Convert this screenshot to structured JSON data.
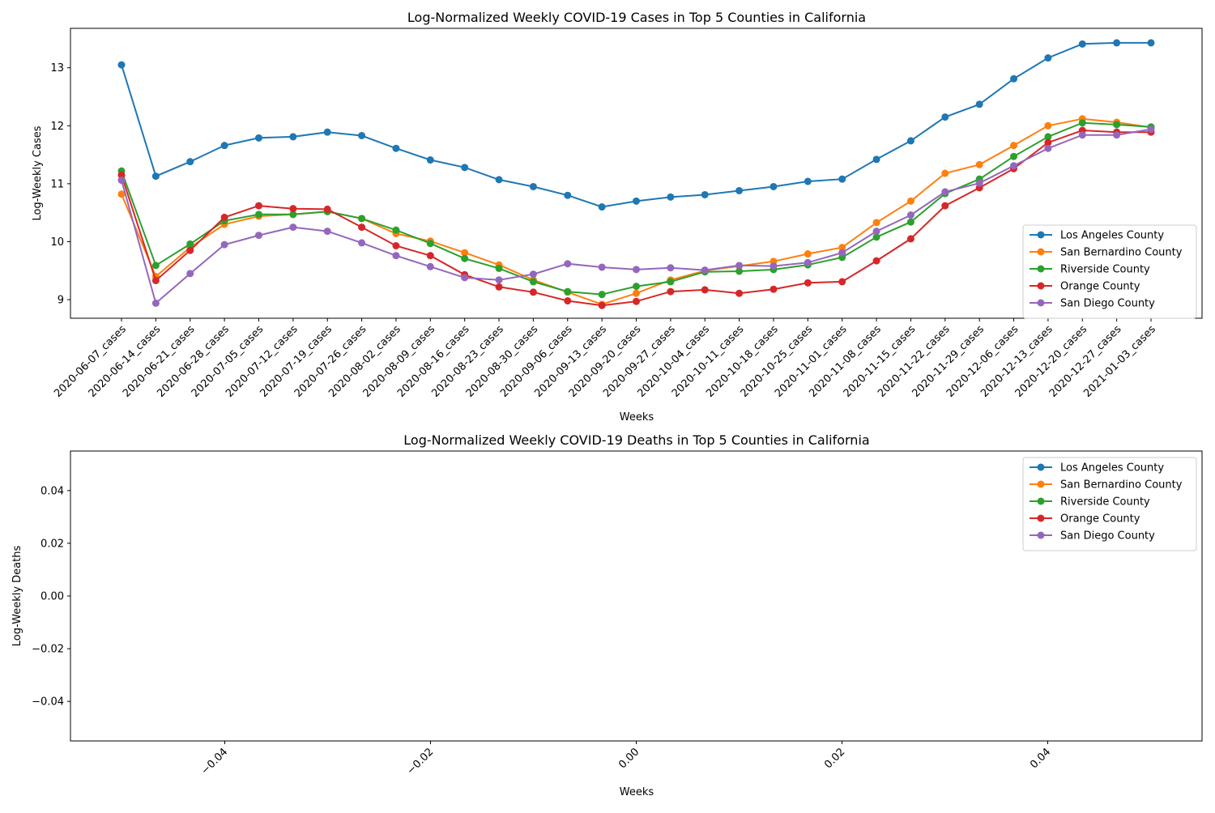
{
  "chart_data": [
    {
      "type": "line",
      "title": "Log-Normalized Weekly COVID-19 Cases in Top 5 Counties in California",
      "xlabel": "Weeks",
      "ylabel": "Log-Weekly Cases",
      "ylim": [
        8.68,
        13.68
      ],
      "yticks": [
        9,
        10,
        11,
        12,
        13
      ],
      "grid": false,
      "legend_position": "lower-right",
      "categories": [
        "2020-06-07_cases",
        "2020-06-14_cases",
        "2020-06-21_cases",
        "2020-06-28_cases",
        "2020-07-05_cases",
        "2020-07-12_cases",
        "2020-07-19_cases",
        "2020-07-26_cases",
        "2020-08-02_cases",
        "2020-08-09_cases",
        "2020-08-16_cases",
        "2020-08-23_cases",
        "2020-08-30_cases",
        "2020-09-06_cases",
        "2020-09-13_cases",
        "2020-09-20_cases",
        "2020-09-27_cases",
        "2020-10-04_cases",
        "2020-10-11_cases",
        "2020-10-18_cases",
        "2020-10-25_cases",
        "2020-11-01_cases",
        "2020-11-08_cases",
        "2020-11-15_cases",
        "2020-11-22_cases",
        "2020-11-29_cases",
        "2020-12-06_cases",
        "2020-12-13_cases",
        "2020-12-20_cases",
        "2020-12-27_cases",
        "2021-01-03_cases"
      ],
      "series": [
        {
          "name": "Los Angeles County",
          "color": "#1f77b4",
          "values": [
            13.05,
            11.13,
            11.38,
            11.66,
            11.79,
            11.81,
            11.89,
            11.83,
            11.61,
            11.41,
            11.28,
            11.07,
            10.95,
            10.8,
            10.6,
            10.7,
            10.77,
            10.81,
            10.88,
            10.95,
            11.04,
            11.08,
            11.42,
            11.74,
            12.15,
            12.37,
            12.81,
            13.17,
            13.41,
            13.43,
            13.43
          ]
        },
        {
          "name": "San Bernardino County",
          "color": "#ff7f0e",
          "values": [
            10.82,
            9.4,
            9.9,
            10.3,
            10.44,
            10.47,
            10.52,
            10.4,
            10.14,
            10.01,
            9.81,
            9.6,
            9.34,
            9.13,
            8.92,
            9.11,
            9.34,
            9.5,
            9.58,
            9.66,
            9.79,
            9.9,
            10.33,
            10.7,
            11.18,
            11.33,
            11.66,
            12.0,
            12.12,
            12.06,
            11.97
          ]
        },
        {
          "name": "Riverside County",
          "color": "#2ca02c",
          "values": [
            11.22,
            9.59,
            9.96,
            10.36,
            10.47,
            10.47,
            10.52,
            10.4,
            10.2,
            9.97,
            9.71,
            9.54,
            9.31,
            9.14,
            9.09,
            9.23,
            9.31,
            9.48,
            9.49,
            9.52,
            9.6,
            9.73,
            10.08,
            10.34,
            10.83,
            11.08,
            11.47,
            11.81,
            12.05,
            12.02,
            11.98
          ]
        },
        {
          "name": "Orange County",
          "color": "#d62728",
          "values": [
            11.15,
            9.33,
            9.85,
            10.42,
            10.62,
            10.57,
            10.56,
            10.25,
            9.93,
            9.76,
            9.43,
            9.22,
            9.13,
            8.98,
            8.9,
            8.97,
            9.14,
            9.17,
            9.11,
            9.18,
            9.29,
            9.31,
            9.67,
            10.05,
            10.62,
            10.93,
            11.26,
            11.71,
            11.92,
            11.89,
            11.89
          ]
        },
        {
          "name": "San Diego County",
          "color": "#9467bd",
          "values": [
            11.06,
            8.94,
            9.45,
            9.95,
            10.11,
            10.25,
            10.18,
            9.98,
            9.76,
            9.57,
            9.38,
            9.34,
            9.44,
            9.62,
            9.56,
            9.52,
            9.55,
            9.51,
            9.59,
            9.58,
            9.64,
            9.81,
            10.18,
            10.46,
            10.86,
            11.01,
            11.31,
            11.61,
            11.84,
            11.84,
            11.94
          ]
        }
      ]
    },
    {
      "type": "line",
      "title": "Log-Normalized Weekly COVID-19 Deaths in Top 5 Counties in California",
      "xlabel": "Weeks",
      "ylabel": "Log-Weekly Deaths",
      "xlim": [
        -0.055,
        0.055
      ],
      "ylim": [
        -0.055,
        0.055
      ],
      "xticks": [
        "−0.04",
        "−0.02",
        "0.00",
        "0.02",
        "0.04"
      ],
      "yticks": [
        "−0.04",
        "−0.02",
        "0.00",
        "0.02",
        "0.04"
      ],
      "grid": false,
      "legend_position": "upper-right",
      "series": [
        {
          "name": "Los Angeles County",
          "color": "#1f77b4",
          "values": []
        },
        {
          "name": "San Bernardino County",
          "color": "#ff7f0e",
          "values": []
        },
        {
          "name": "Riverside County",
          "color": "#2ca02c",
          "values": []
        },
        {
          "name": "Orange County",
          "color": "#d62728",
          "values": []
        },
        {
          "name": "San Diego County",
          "color": "#9467bd",
          "values": []
        }
      ]
    }
  ]
}
